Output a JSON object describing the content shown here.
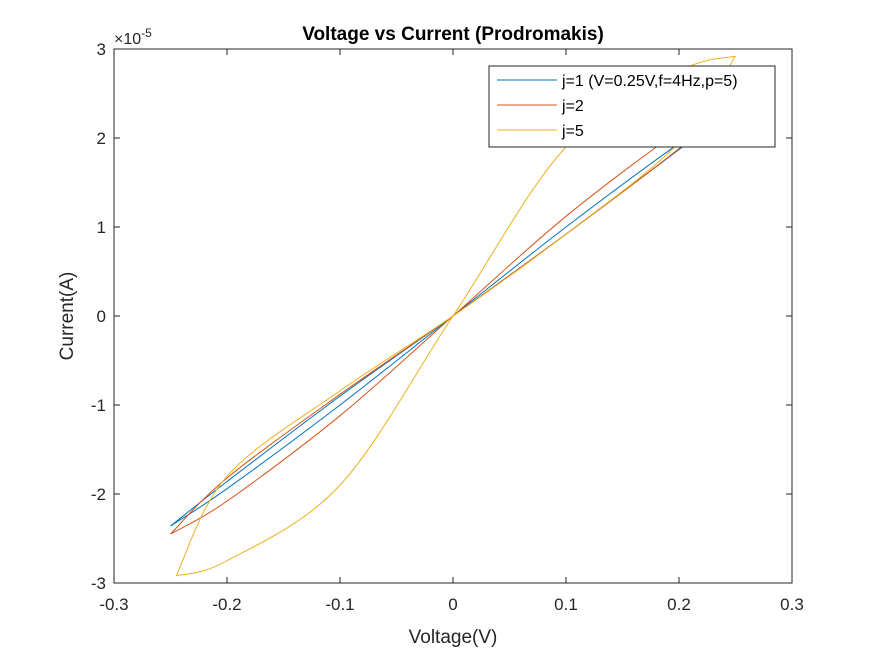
{
  "chart_data": {
    "type": "line",
    "title": "Voltage vs Current (Prodromakis)",
    "xlabel": "Voltage(V)",
    "ylabel": "Current(A)",
    "xlim": [
      -0.3,
      0.3
    ],
    "ylim": [
      -3e-05,
      3e-05
    ],
    "x_ticks": [
      -0.3,
      -0.2,
      -0.1,
      0,
      0.1,
      0.2,
      0.3
    ],
    "x_tick_labels": [
      "-0.3",
      "-0.2",
      "-0.1",
      "0",
      "0.1",
      "0.2",
      "0.3"
    ],
    "y_ticks": [
      -3e-05,
      -2e-05,
      -1e-05,
      0,
      1e-05,
      2e-05,
      3e-05
    ],
    "y_tick_labels": [
      "-3",
      "-2",
      "-1",
      "0",
      "1",
      "2",
      "3"
    ],
    "y_exponent_base": "×10",
    "y_exponent_power": "-5",
    "grid": false,
    "legend_position": "top-right",
    "series": [
      {
        "name": "j=1 (V=0.25V,f=4Hz,p=5)",
        "color": "#0072BD",
        "branch_up": [
          [
            -0.25,
            -2.36e-05
          ],
          [
            -0.2,
            -1.86e-05
          ],
          [
            -0.1,
            -9e-06
          ],
          [
            0,
            0
          ],
          [
            0.1,
            9.2e-06
          ],
          [
            0.2,
            1.87e-05
          ],
          [
            0.25,
            2.36e-05
          ]
        ],
        "branch_down": [
          [
            0.25,
            2.36e-05
          ],
          [
            0.2,
            1.94e-05
          ],
          [
            0.1,
            1e-05
          ],
          [
            0,
            0
          ],
          [
            -0.1,
            -1e-05
          ],
          [
            -0.2,
            -1.94e-05
          ],
          [
            -0.25,
            -2.36e-05
          ]
        ]
      },
      {
        "name": "j=2",
        "color": "#D95319",
        "branch_up": [
          [
            -0.25,
            -2.45e-05
          ],
          [
            -0.2,
            -1.82e-05
          ],
          [
            -0.1,
            -8.8e-06
          ],
          [
            0,
            0
          ],
          [
            0.1,
            9.2e-06
          ],
          [
            0.2,
            1.88e-05
          ],
          [
            0.25,
            2.45e-05
          ]
        ],
        "branch_down": [
          [
            0.25,
            2.45e-05
          ],
          [
            0.2,
            2.08e-05
          ],
          [
            0.1,
            1.12e-05
          ],
          [
            0,
            0
          ],
          [
            -0.1,
            -1.12e-05
          ],
          [
            -0.2,
            -2.08e-05
          ],
          [
            -0.25,
            -2.45e-05
          ]
        ]
      },
      {
        "name": "j=5",
        "color": "#EDB120",
        "branch_up": [
          [
            -0.245,
            -2.92e-05
          ],
          [
            -0.2,
            -1.8e-05
          ],
          [
            -0.1,
            -8.4e-06
          ],
          [
            0,
            0
          ],
          [
            0.1,
            9.2e-06
          ],
          [
            0.2,
            1.95e-05
          ],
          [
            0.25,
            2.92e-05
          ]
        ],
        "branch_down": [
          [
            0.25,
            2.92e-05
          ],
          [
            0.2,
            2.75e-05
          ],
          [
            0.1,
            1.9e-05
          ],
          [
            0,
            0
          ],
          [
            -0.1,
            -1.9e-05
          ],
          [
            -0.2,
            -2.75e-05
          ],
          [
            -0.245,
            -2.92e-05
          ]
        ]
      }
    ]
  }
}
